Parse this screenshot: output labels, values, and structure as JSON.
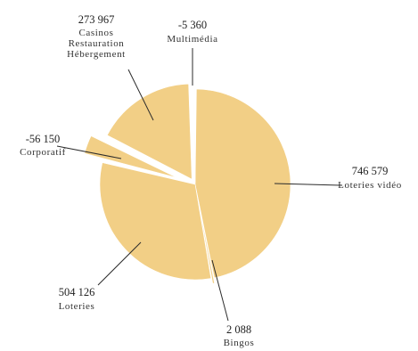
{
  "chart_data": {
    "type": "pie",
    "title": "",
    "colors": {
      "slice": "#f2cf86",
      "leader": "#2b2b2b",
      "text": "#222222"
    },
    "slices": [
      {
        "value": 746579,
        "value_label": "746 579",
        "category": [
          "Loteries vidéo"
        ]
      },
      {
        "value": 2088,
        "value_label": "2 088",
        "category": [
          "Bingos"
        ]
      },
      {
        "value": 504126,
        "value_label": "504 126",
        "category": [
          "Loteries"
        ]
      },
      {
        "value": -56150,
        "value_label": "-56 150",
        "category": [
          "Corporatif"
        ]
      },
      {
        "value": 273967,
        "value_label": "273 967",
        "category": [
          "Casinos",
          "Restauration",
          "Hébergement"
        ]
      },
      {
        "value": -5360,
        "value_label": "-5 360",
        "category": [
          "Multimédia"
        ]
      }
    ]
  }
}
